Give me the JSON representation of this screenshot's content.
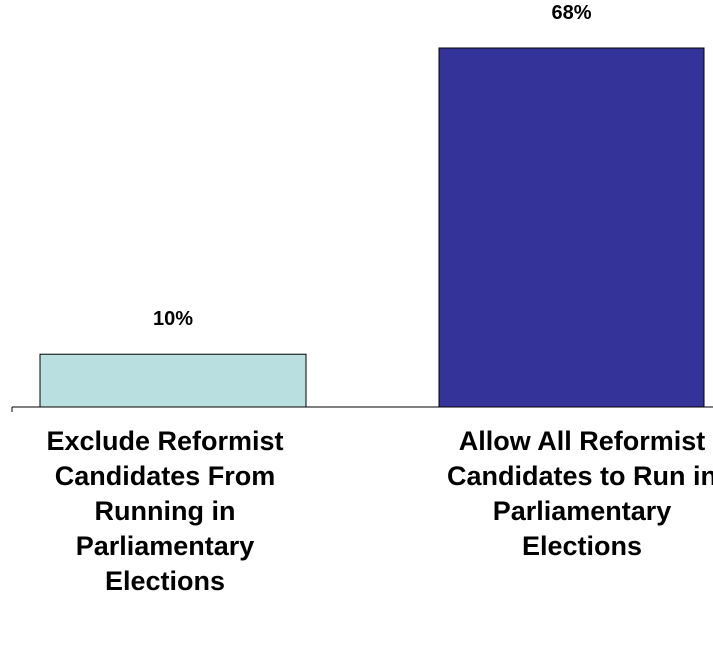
{
  "chart_data": {
    "type": "bar",
    "categories": [
      "Exclude Reformist Candidates From Running in Parliamentary Elections",
      "Allow All Reformist Candidates to Run in Parliamentary Elections"
    ],
    "values": [
      10,
      68
    ],
    "value_labels": [
      "10%",
      "68%"
    ],
    "colors": [
      "#b9dfe0",
      "#333399"
    ],
    "ylim": [
      0,
      68
    ],
    "title": "",
    "xlabel": "",
    "ylabel": "",
    "grid": false,
    "legend": "none"
  }
}
